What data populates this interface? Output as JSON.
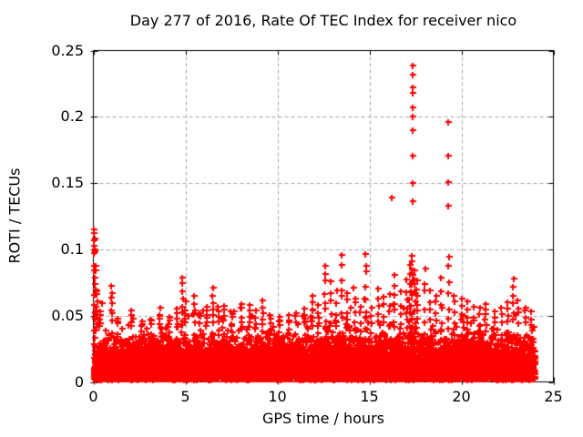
{
  "chart_data": {
    "type": "scatter",
    "title": "Day 277 of 2016, Rate Of TEC Index for receiver nico",
    "xlabel": "GPS time / hours",
    "ylabel": "ROTI / TECUs",
    "xlim": [
      0,
      25
    ],
    "ylim": [
      0,
      0.25
    ],
    "xticks": [
      {
        "label": "0",
        "value": 0
      },
      {
        "label": "5",
        "value": 5
      },
      {
        "label": "10",
        "value": 10
      },
      {
        "label": "15",
        "value": 15
      },
      {
        "label": "20",
        "value": 20
      },
      {
        "label": "25",
        "value": 25
      }
    ],
    "yticks": [
      {
        "label": "0",
        "value": 0
      },
      {
        "label": "0.05",
        "value": 0.05
      },
      {
        "label": "0.1",
        "value": 0.1
      },
      {
        "label": "0.15",
        "value": 0.15
      },
      {
        "label": "0.2",
        "value": 0.2
      },
      {
        "label": "0.25",
        "value": 0.25
      }
    ],
    "grid": {
      "show": true,
      "color": "#a6a6a6",
      "dash": [
        4,
        3
      ]
    },
    "legend": "none",
    "axis_color": "#000000",
    "text_color": "#000000",
    "background": "#ffffff",
    "marker": {
      "shape": "plus",
      "color": "#ff0000",
      "size": 7,
      "stroke": 2
    },
    "data_time_range": [
      0,
      24
    ],
    "baseline": {
      "points": 10500,
      "floor": 0.002,
      "exp_scale": 0.011,
      "band_cap": 0.033,
      "tail_keep": 0.3,
      "seed": 1337
    },
    "envelope": [
      [
        0,
        0.115
      ],
      [
        0.3,
        0.07
      ],
      [
        0.7,
        0.05
      ],
      [
        1,
        0.073
      ],
      [
        1.5,
        0.048
      ],
      [
        2,
        0.055
      ],
      [
        2.5,
        0.045
      ],
      [
        3,
        0.048
      ],
      [
        3.5,
        0.055
      ],
      [
        4,
        0.05
      ],
      [
        4.5,
        0.055
      ],
      [
        4.9,
        0.08
      ],
      [
        5.5,
        0.068
      ],
      [
        6,
        0.058
      ],
      [
        6.5,
        0.072
      ],
      [
        7,
        0.06
      ],
      [
        7.5,
        0.056
      ],
      [
        8,
        0.06
      ],
      [
        8.5,
        0.058
      ],
      [
        9,
        0.062
      ],
      [
        9.5,
        0.051
      ],
      [
        10,
        0.048
      ],
      [
        10.5,
        0.05
      ],
      [
        11,
        0.053
      ],
      [
        11.5,
        0.056
      ],
      [
        12,
        0.062
      ],
      [
        12.6,
        0.09
      ],
      [
        13,
        0.078
      ],
      [
        13.5,
        0.095
      ],
      [
        14,
        0.07
      ],
      [
        14.8,
        0.1
      ],
      [
        15.2,
        0.058
      ],
      [
        15.5,
        0.072
      ],
      [
        16,
        0.066
      ],
      [
        16.4,
        0.08
      ],
      [
        16.8,
        0.07
      ],
      [
        17.3,
        0.1
      ],
      [
        17.6,
        0.08
      ],
      [
        18,
        0.088
      ],
      [
        18.5,
        0.072
      ],
      [
        19,
        0.078
      ],
      [
        19.3,
        0.095
      ],
      [
        19.7,
        0.062
      ],
      [
        20,
        0.065
      ],
      [
        20.5,
        0.06
      ],
      [
        21,
        0.056
      ],
      [
        21.4,
        0.062
      ],
      [
        22,
        0.054
      ],
      [
        22.5,
        0.06
      ],
      [
        22.8,
        0.078
      ],
      [
        23.2,
        0.058
      ],
      [
        23.6,
        0.056
      ],
      [
        24,
        0.052
      ]
    ],
    "spikes": [
      [
        0.05,
        0.115,
        10
      ],
      [
        0.12,
        0.092,
        8
      ],
      [
        0.2,
        0.072,
        6
      ],
      [
        0.35,
        0.055,
        4
      ],
      [
        1.0,
        0.073,
        6
      ],
      [
        1.3,
        0.05,
        3
      ],
      [
        2.1,
        0.057,
        4
      ],
      [
        2.6,
        0.046,
        3
      ],
      [
        3.1,
        0.049,
        3
      ],
      [
        3.6,
        0.057,
        4
      ],
      [
        4.1,
        0.052,
        3
      ],
      [
        4.55,
        0.056,
        4
      ],
      [
        4.85,
        0.082,
        7
      ],
      [
        5.0,
        0.062,
        4
      ],
      [
        5.5,
        0.068,
        5
      ],
      [
        5.8,
        0.055,
        3
      ],
      [
        6.15,
        0.058,
        4
      ],
      [
        6.5,
        0.073,
        6
      ],
      [
        6.8,
        0.06,
        4
      ],
      [
        7.1,
        0.061,
        4
      ],
      [
        7.5,
        0.057,
        3
      ],
      [
        8.05,
        0.062,
        4
      ],
      [
        8.5,
        0.059,
        4
      ],
      [
        8.8,
        0.055,
        3
      ],
      [
        9.2,
        0.064,
        5
      ],
      [
        9.6,
        0.052,
        3
      ],
      [
        10.1,
        0.05,
        3
      ],
      [
        10.6,
        0.052,
        3
      ],
      [
        11.0,
        0.054,
        3
      ],
      [
        11.5,
        0.057,
        4
      ],
      [
        11.9,
        0.067,
        5
      ],
      [
        12.2,
        0.06,
        4
      ],
      [
        12.6,
        0.093,
        7
      ],
      [
        12.9,
        0.078,
        5
      ],
      [
        13.2,
        0.07,
        4
      ],
      [
        13.5,
        0.098,
        7
      ],
      [
        13.8,
        0.072,
        4
      ],
      [
        14.2,
        0.068,
        4
      ],
      [
        14.5,
        0.06,
        3
      ],
      [
        14.8,
        0.102,
        7
      ],
      [
        15.1,
        0.058,
        3
      ],
      [
        15.5,
        0.073,
        5
      ],
      [
        15.8,
        0.065,
        4
      ],
      [
        16.1,
        0.068,
        4
      ],
      [
        16.35,
        0.083,
        6
      ],
      [
        16.7,
        0.07,
        4
      ],
      [
        17.05,
        0.078,
        6
      ],
      [
        17.2,
        0.09,
        8
      ],
      [
        17.3,
        0.1,
        9
      ],
      [
        17.45,
        0.088,
        7
      ],
      [
        17.6,
        0.08,
        6
      ],
      [
        18.0,
        0.09,
        5
      ],
      [
        18.3,
        0.075,
        4
      ],
      [
        18.6,
        0.07,
        4
      ],
      [
        18.9,
        0.08,
        4
      ],
      [
        19.3,
        0.098,
        6
      ],
      [
        19.6,
        0.07,
        4
      ],
      [
        20.0,
        0.066,
        4
      ],
      [
        20.3,
        0.062,
        4
      ],
      [
        20.7,
        0.058,
        3
      ],
      [
        21.0,
        0.057,
        3
      ],
      [
        21.35,
        0.063,
        4
      ],
      [
        21.8,
        0.055,
        3
      ],
      [
        22.2,
        0.057,
        3
      ],
      [
        22.5,
        0.062,
        4
      ],
      [
        22.8,
        0.08,
        6
      ],
      [
        23.1,
        0.06,
        3
      ],
      [
        23.5,
        0.057,
        3
      ],
      [
        23.8,
        0.054,
        3
      ]
    ],
    "outliers": [
      [
        17.34,
        0.239
      ],
      [
        17.34,
        0.232
      ],
      [
        17.35,
        0.222
      ],
      [
        17.34,
        0.218
      ],
      [
        17.35,
        0.207
      ],
      [
        17.36,
        0.2
      ],
      [
        17.35,
        0.19
      ],
      [
        17.35,
        0.171
      ],
      [
        17.36,
        0.15
      ],
      [
        17.36,
        0.136
      ],
      [
        19.27,
        0.196
      ],
      [
        19.27,
        0.171
      ],
      [
        19.26,
        0.151
      ],
      [
        19.28,
        0.133
      ],
      [
        16.21,
        0.139
      ],
      [
        0.03,
        0.115
      ],
      [
        0.04,
        0.112
      ],
      [
        0.05,
        0.108
      ],
      [
        0.03,
        0.103
      ],
      [
        0.05,
        0.1
      ],
      [
        0.02,
        0.097
      ]
    ]
  }
}
